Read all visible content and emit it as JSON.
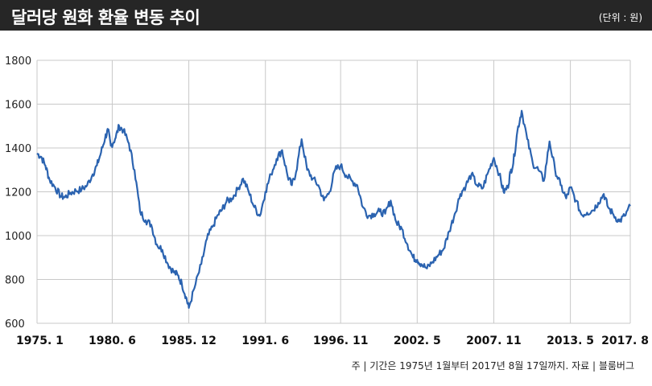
{
  "header": {
    "title": "달러당 원화 환율 변동 추이",
    "unit": "(단위 : 원)"
  },
  "footnote": "주 | 기간은 1975년 1월부터 2017년 8월 17일까지. 자료 | 블룸버그",
  "colors": {
    "line": "#2b63b0",
    "header_bg": "#262626",
    "grid": "#c8c8c8"
  },
  "chart_data": {
    "type": "line",
    "title": "달러당 원화 환율 변동 추이",
    "unit": "(단위 : 원)",
    "xlabel": "",
    "ylabel": "",
    "x_range": [
      1975.0,
      2017.6
    ],
    "ylim": [
      600,
      1800
    ],
    "y_ticks": [
      600,
      800,
      1000,
      1200,
      1400,
      1600,
      1800
    ],
    "x_ticks": [
      {
        "label": "1975. 1",
        "x": 1975.0
      },
      {
        "label": "1980. 6",
        "x": 1980.4
      },
      {
        "label": "1985. 12",
        "x": 1985.9
      },
      {
        "label": "1991. 6",
        "x": 1991.4
      },
      {
        "label": "1996. 11",
        "x": 1996.8
      },
      {
        "label": "2002. 5",
        "x": 2002.3
      },
      {
        "label": "2007. 11",
        "x": 2007.8
      },
      {
        "label": "2013. 5",
        "x": 2013.3
      },
      {
        "label": "2017. 8",
        "x": 2017.6
      }
    ],
    "grid": true,
    "legend": "none",
    "series": [
      {
        "x": [
          1975.0,
          1975.3,
          1975.6,
          1975.9,
          1976.3,
          1976.7,
          1977.0,
          1977.4,
          1977.8,
          1978.2,
          1978.6,
          1979.0,
          1979.3,
          1979.6,
          1979.9,
          1980.1,
          1980.3,
          1980.6,
          1980.9,
          1981.2,
          1981.6,
          1982.0,
          1982.4,
          1982.8,
          1983.2,
          1983.6,
          1984.0,
          1984.4,
          1984.8,
          1985.1,
          1985.4,
          1985.7,
          1985.9,
          1986.3,
          1986.8,
          1987.2,
          1987.6,
          1988.0,
          1988.3,
          1988.6,
          1989.0,
          1989.4,
          1989.8,
          1990.2,
          1990.6,
          1991.0,
          1991.4,
          1991.8,
          1992.2,
          1992.6,
          1993.0,
          1993.3,
          1993.6,
          1994.0,
          1994.4,
          1994.8,
          1995.2,
          1995.6,
          1996.0,
          1996.4,
          1996.8,
          1997.2,
          1997.6,
          1998.0,
          1998.4,
          1998.8,
          1999.2,
          1999.6,
          2000.0,
          2000.4,
          2000.8,
          2001.2,
          2001.6,
          2002.0,
          2002.3,
          2002.6,
          2003.0,
          2003.4,
          2003.8,
          2004.2,
          2004.6,
          2005.0,
          2005.4,
          2005.8,
          2006.2,
          2006.6,
          2007.0,
          2007.4,
          2007.8,
          2008.2,
          2008.5,
          2008.8,
          2009.0,
          2009.2,
          2009.5,
          2009.8,
          2010.2,
          2010.6,
          2011.0,
          2011.4,
          2011.8,
          2012.2,
          2012.6,
          2013.0,
          2013.3,
          2013.7,
          2014.1,
          2014.5,
          2014.9,
          2015.3,
          2015.7,
          2016.0,
          2016.4,
          2016.8,
          2017.2,
          2017.6
        ],
        "y": [
          1375,
          1360,
          1320,
          1255,
          1220,
          1180,
          1175,
          1195,
          1205,
          1210,
          1230,
          1280,
          1320,
          1380,
          1450,
          1480,
          1410,
          1440,
          1500,
          1480,
          1420,
          1300,
          1110,
          1070,
          1050,
          960,
          935,
          870,
          835,
          820,
          780,
          720,
          670,
          760,
          870,
          985,
          1040,
          1095,
          1120,
          1155,
          1170,
          1210,
          1260,
          1200,
          1130,
          1090,
          1200,
          1280,
          1350,
          1390,
          1270,
          1230,
          1290,
          1440,
          1300,
          1260,
          1230,
          1160,
          1200,
          1300,
          1320,
          1275,
          1250,
          1230,
          1130,
          1090,
          1100,
          1110,
          1100,
          1160,
          1060,
          1030,
          960,
          900,
          890,
          870,
          850,
          880,
          910,
          940,
          1020,
          1100,
          1190,
          1230,
          1280,
          1230,
          1215,
          1290,
          1355,
          1280,
          1200,
          1220,
          1290,
          1330,
          1480,
          1570,
          1440,
          1330,
          1300,
          1250,
          1430,
          1300,
          1230,
          1170,
          1220,
          1160,
          1095,
          1105,
          1115,
          1150,
          1190,
          1130,
          1095,
          1065,
          1090,
          1135
        ]
      }
    ]
  }
}
